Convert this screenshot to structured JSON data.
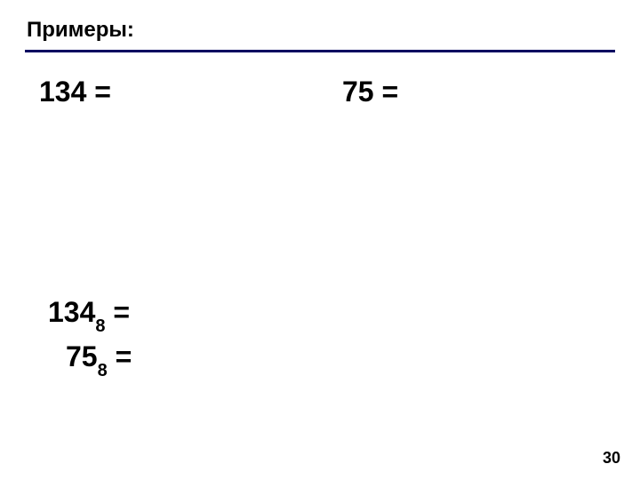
{
  "header": {
    "title": "Примеры:"
  },
  "row1": {
    "left_num": "134",
    "left_eq": " = ",
    "right_num": "75",
    "right_eq": " = "
  },
  "row2": {
    "num": "134",
    "sub": "8",
    "eq": " = "
  },
  "row3": {
    "num": "75",
    "sub": "8",
    "eq": " = "
  },
  "page": "30",
  "colors": {
    "underline": "#000060",
    "text": "#000000",
    "background": "#ffffff"
  }
}
